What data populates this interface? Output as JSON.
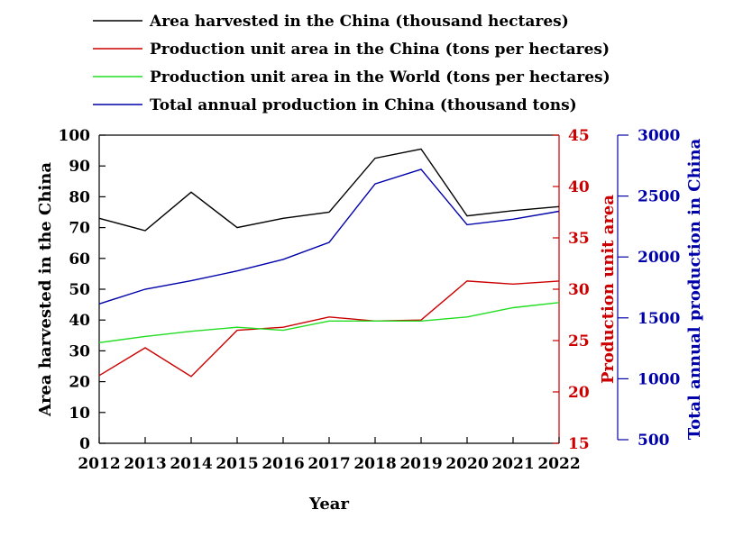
{
  "chart_data": {
    "type": "line",
    "xlabel": "Year",
    "x": [
      "2012",
      "2013",
      "2014",
      "2015",
      "2016",
      "2017",
      "2018",
      "2019",
      "2020",
      "2021",
      "2022"
    ],
    "colors": {
      "area": "#000000",
      "unit_china": "#cc0000",
      "unit_world": "#22dd22",
      "total": "#0000aa"
    },
    "legend_position": "top",
    "grid": false,
    "axes": {
      "left": {
        "label": "Area harvested in the China",
        "ylim": [
          0,
          100
        ],
        "ticks": [
          0,
          10,
          20,
          30,
          40,
          50,
          60,
          70,
          80,
          90,
          100
        ]
      },
      "right1": {
        "label": "Production unit area",
        "ylim": [
          15,
          45
        ],
        "ticks": [
          15,
          20,
          25,
          30,
          35,
          40,
          45
        ]
      },
      "right2": {
        "label": "Total annual production in China",
        "ylim": [
          500,
          3000
        ],
        "ticks": [
          500,
          1000,
          1500,
          2000,
          2500,
          3000
        ]
      }
    },
    "series": [
      {
        "key": "area",
        "name": "Area harvested in the China (thousand hectares)",
        "axis": "left",
        "values": [
          73.0,
          69.0,
          81.5,
          70.0,
          73.0,
          75.0,
          92.5,
          95.5,
          73.8,
          75.5,
          76.8
        ]
      },
      {
        "key": "unit_china",
        "name": "Production unit area in the China (tons per hectares)",
        "axis": "right1",
        "values": [
          21.6,
          24.3,
          21.5,
          26.0,
          26.3,
          27.3,
          26.9,
          27.0,
          30.8,
          30.5,
          30.8
        ]
      },
      {
        "key": "unit_world",
        "name": "Production unit area in the World (tons per hectares)",
        "axis": "right1",
        "values": [
          24.8,
          25.4,
          25.9,
          26.3,
          26.0,
          26.9,
          26.9,
          26.9,
          27.3,
          28.2,
          28.7
        ]
      },
      {
        "key": "total",
        "name": "Total annual production in China (thousand tons)",
        "axis": "right2",
        "values": [
          1615,
          1735,
          1805,
          1885,
          1980,
          2120,
          2600,
          2720,
          2265,
          2310,
          2375
        ]
      }
    ]
  }
}
